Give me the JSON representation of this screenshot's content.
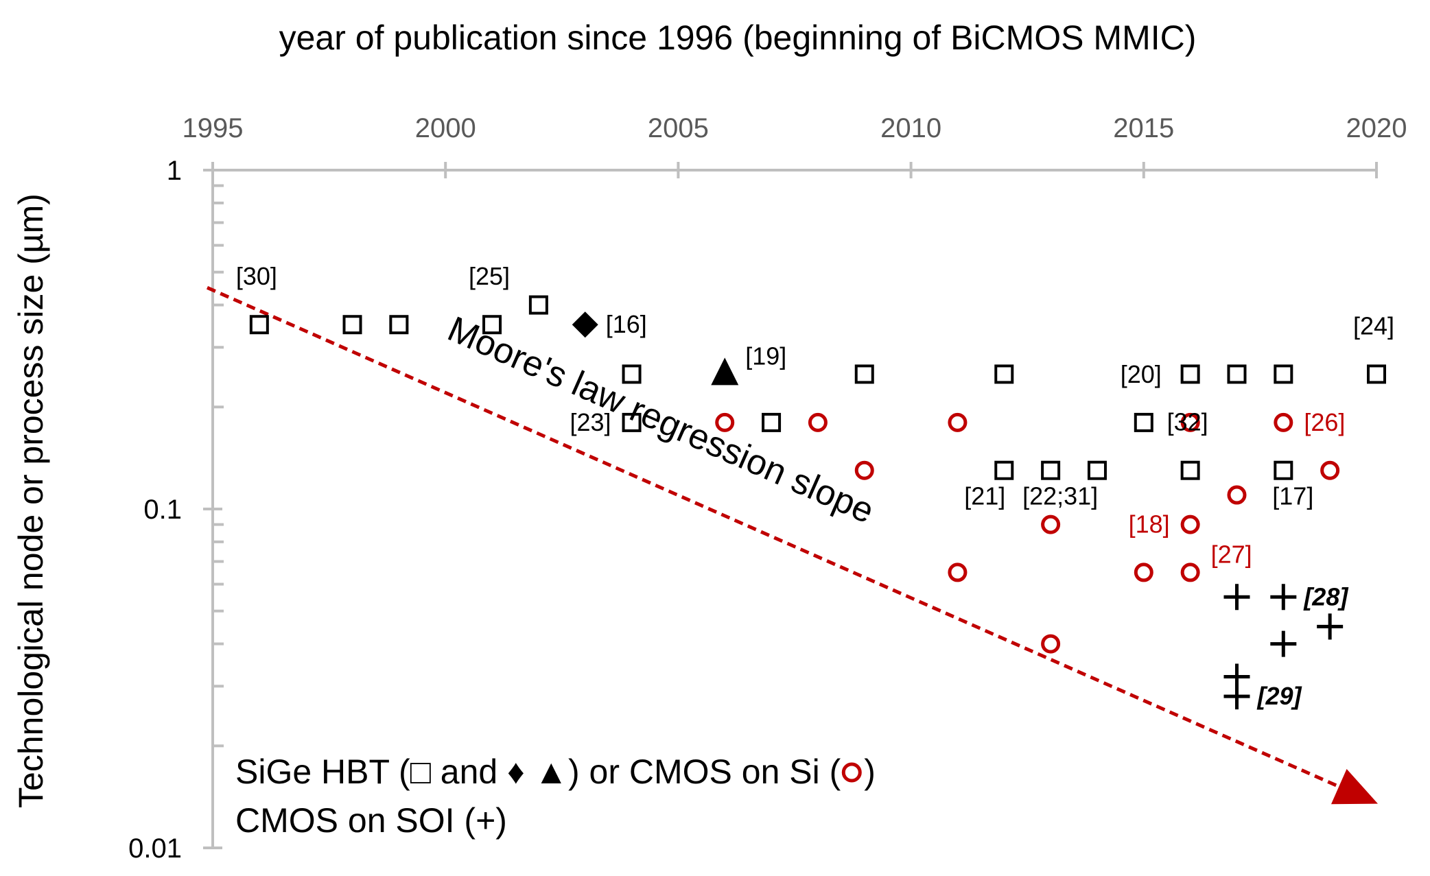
{
  "chart_data": {
    "type": "scatter",
    "title": "year of publication since 1996 (beginning of BiCMOS MMIC)",
    "xlabel": "",
    "ylabel": "Technological node or process size (µm)",
    "xlim": [
      1995,
      2020
    ],
    "ylim": [
      0.01,
      1
    ],
    "yscale": "log",
    "x_ticks": [
      "1995",
      "2000",
      "2005",
      "2010",
      "2015",
      "2020"
    ],
    "y_ticks": [
      "1",
      "0.1",
      "0.01"
    ],
    "x_axis_position": "top",
    "colors": {
      "sige": "#000000",
      "cmos_si": "#c00000",
      "soi": "#000000",
      "moore": "#c00000",
      "axis": "#bfbfbf"
    },
    "series": [
      {
        "name": "SiGe HBT",
        "marker": "square",
        "points": [
          {
            "x": 1996,
            "y": 0.35
          },
          {
            "x": 1998,
            "y": 0.35
          },
          {
            "x": 1999,
            "y": 0.35
          },
          {
            "x": 2001,
            "y": 0.35
          },
          {
            "x": 2002,
            "y": 0.4
          },
          {
            "x": 2004,
            "y": 0.25
          },
          {
            "x": 2004,
            "y": 0.18
          },
          {
            "x": 2007,
            "y": 0.18
          },
          {
            "x": 2009,
            "y": 0.25
          },
          {
            "x": 2012,
            "y": 0.25
          },
          {
            "x": 2012,
            "y": 0.13
          },
          {
            "x": 2013,
            "y": 0.13
          },
          {
            "x": 2014,
            "y": 0.13
          },
          {
            "x": 2015,
            "y": 0.18
          },
          {
            "x": 2016,
            "y": 0.25
          },
          {
            "x": 2016,
            "y": 0.13
          },
          {
            "x": 2017,
            "y": 0.25
          },
          {
            "x": 2018,
            "y": 0.25
          },
          {
            "x": 2018,
            "y": 0.13
          },
          {
            "x": 2020,
            "y": 0.25
          }
        ]
      },
      {
        "name": "SiGe HBT (diamond)",
        "marker": "diamond",
        "points": [
          {
            "x": 2003,
            "y": 0.35
          }
        ]
      },
      {
        "name": "SiGe HBT (triangle)",
        "marker": "triangle",
        "points": [
          {
            "x": 2006,
            "y": 0.25
          }
        ]
      },
      {
        "name": "CMOS on Si",
        "marker": "circle",
        "points": [
          {
            "x": 2006,
            "y": 0.18
          },
          {
            "x": 2008,
            "y": 0.18
          },
          {
            "x": 2009,
            "y": 0.13
          },
          {
            "x": 2011,
            "y": 0.18
          },
          {
            "x": 2011,
            "y": 0.065
          },
          {
            "x": 2013,
            "y": 0.09
          },
          {
            "x": 2013,
            "y": 0.04
          },
          {
            "x": 2015,
            "y": 0.065
          },
          {
            "x": 2016,
            "y": 0.18
          },
          {
            "x": 2016,
            "y": 0.09
          },
          {
            "x": 2016,
            "y": 0.065
          },
          {
            "x": 2017,
            "y": 0.11
          },
          {
            "x": 2018,
            "y": 0.18
          },
          {
            "x": 2019,
            "y": 0.13
          }
        ]
      },
      {
        "name": "CMOS on SOI",
        "marker": "plus",
        "points": [
          {
            "x": 2017,
            "y": 0.055
          },
          {
            "x": 2018,
            "y": 0.055
          },
          {
            "x": 2018,
            "y": 0.04
          },
          {
            "x": 2019,
            "y": 0.045
          },
          {
            "x": 2017,
            "y": 0.032
          },
          {
            "x": 2017,
            "y": 0.028
          }
        ]
      }
    ],
    "annotations": [
      {
        "text": "[30]",
        "x": 1996,
        "y": 0.35,
        "color": "black",
        "style": "normal",
        "pos": "above"
      },
      {
        "text": "[25]",
        "x": 2001,
        "y": 0.35,
        "color": "black",
        "style": "normal",
        "pos": "above"
      },
      {
        "text": "[16]",
        "x": 2003,
        "y": 0.35,
        "color": "black",
        "style": "normal",
        "pos": "right"
      },
      {
        "text": "[19]",
        "x": 2006,
        "y": 0.25,
        "color": "black",
        "style": "normal",
        "pos": "upper-right"
      },
      {
        "text": "[23]",
        "x": 2004,
        "y": 0.18,
        "color": "black",
        "style": "normal",
        "pos": "left"
      },
      {
        "text": "[24]",
        "x": 2020,
        "y": 0.25,
        "color": "black",
        "style": "normal",
        "pos": "above"
      },
      {
        "text": "[20]",
        "x": 2015,
        "y": 0.18,
        "color": "black",
        "style": "normal",
        "pos": "above"
      },
      {
        "text": "[32]",
        "x": 2016,
        "y": 0.13,
        "color": "black",
        "style": "normal",
        "pos": "above"
      },
      {
        "text": "[26]",
        "x": 2018,
        "y": 0.18,
        "color": "red",
        "style": "normal",
        "pos": "right"
      },
      {
        "text": "[21]",
        "x": 2012,
        "y": 0.13,
        "color": "black",
        "style": "normal",
        "pos": "below-left"
      },
      {
        "text": "[22;31]",
        "x": 2013,
        "y": 0.13,
        "color": "black",
        "style": "normal",
        "pos": "below"
      },
      {
        "text": "[17]",
        "x": 2018,
        "y": 0.13,
        "color": "black",
        "style": "normal",
        "pos": "below"
      },
      {
        "text": "[18]",
        "x": 2016,
        "y": 0.09,
        "color": "red",
        "style": "normal",
        "pos": "left"
      },
      {
        "text": "[27]",
        "x": 2016,
        "y": 0.065,
        "color": "red",
        "style": "normal",
        "pos": "upper-right"
      },
      {
        "text": "[28]",
        "x": 2018,
        "y": 0.055,
        "color": "black",
        "style": "bold-italic",
        "pos": "right"
      },
      {
        "text": "[29]",
        "x": 2017,
        "y": 0.028,
        "color": "black",
        "style": "bold-italic",
        "pos": "right"
      }
    ],
    "regression_line": {
      "label": "Moore's law regression slope",
      "from": {
        "x": 1995,
        "y": 0.45
      },
      "to": {
        "x": 2020,
        "y": 0.0135
      },
      "style": "dashed-arrow"
    },
    "legend": {
      "line1": "SiGe HBT (□ and ♦ ▲) or CMOS on Si (",
      "line1_close": ")",
      "line2": "CMOS on SOI (+)",
      "position": "bottom-left"
    }
  }
}
